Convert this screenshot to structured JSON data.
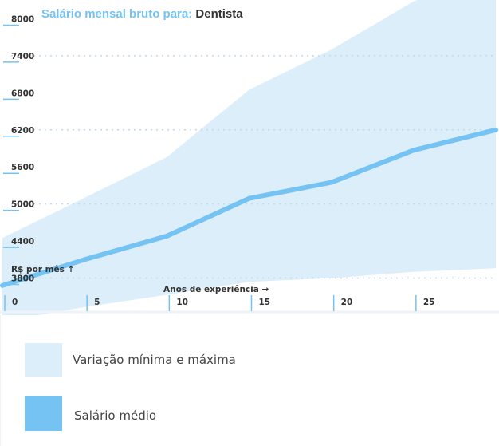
{
  "title": {
    "prefix": "Salário mensal bruto para:",
    "job": "Dentista"
  },
  "chart_data": {
    "type": "area",
    "title": "Salário mensal bruto para: Dentista",
    "xlabel": "Anos de experiência →",
    "ylabel": "R$ por mês ↑",
    "x_ticks": [
      0,
      5,
      10,
      15,
      20,
      25
    ],
    "y_ticks": [
      3800,
      4400,
      5000,
      5600,
      6200,
      6800,
      7400,
      8000
    ],
    "y_gridlines": [
      3800,
      5000,
      6200,
      7400
    ],
    "xlim": [
      0,
      30
    ],
    "ylim": [
      3200,
      8200
    ],
    "grid": "dotted horizontal",
    "series": [
      {
        "name": "Variação mínima e máxima",
        "kind": "range",
        "x": [
          0,
          5,
          10,
          15,
          20,
          25,
          30
        ],
        "low": [
          3100,
          3330,
          3530,
          3740,
          3800,
          3900,
          3960
        ],
        "high": [
          4450,
          5100,
          5760,
          6850,
          7500,
          8280,
          8820
        ]
      },
      {
        "name": "Salário médio",
        "kind": "line",
        "x": [
          0,
          5,
          10,
          15,
          20,
          25,
          30
        ],
        "values": [
          3680,
          4100,
          4480,
          5090,
          5350,
          5870,
          6200
        ]
      }
    ]
  },
  "legend": [
    {
      "label": "Variação mínima e máxima",
      "color": "#ddeefb"
    },
    {
      "label": "Salário médio",
      "color": "#75c3f2"
    }
  ],
  "colors": {
    "range_fill": "#ddeefb",
    "line": "#75c3f2",
    "grid": "#bfd9ea",
    "axis_text": "#333333"
  }
}
